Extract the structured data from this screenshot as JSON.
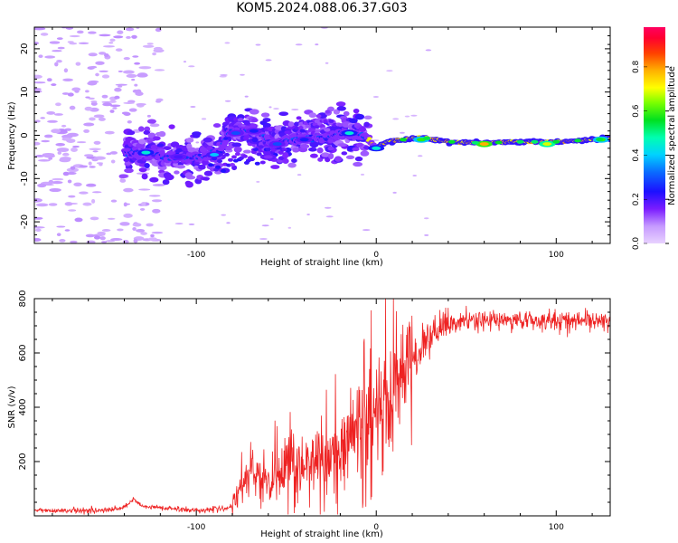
{
  "title": "KOM5.2024.088.06.37.G03",
  "chart_data": [
    {
      "type": "heatmap",
      "xlabel": "Height of straight line (km)",
      "ylabel": "Frequency (Hz)",
      "xlim": [
        -190,
        130
      ],
      "ylim": [
        -25,
        25
      ],
      "x_ticks": [
        -100,
        0,
        100
      ],
      "y_ticks": [
        -20,
        -10,
        0,
        10,
        20
      ],
      "colorbar": {
        "label": "Normalized spectral amplitude",
        "range": [
          0,
          0.98
        ],
        "ticks": [
          "0.0",
          "0.2",
          "0.4",
          "0.6",
          "0.8"
        ],
        "colormap": "rainbow-lavender-to-red"
      },
      "blobs": [
        {
          "x": -128,
          "y": -4,
          "amp": 0.45
        },
        {
          "x": -110,
          "y": -5,
          "amp": 0.2
        },
        {
          "x": -90,
          "y": -4.5,
          "amp": 0.4
        },
        {
          "x": -78,
          "y": 0.5,
          "amp": 0.3
        },
        {
          "x": -68,
          "y": 1,
          "amp": 0.25
        },
        {
          "x": -60,
          "y": -5,
          "amp": 0.15
        },
        {
          "x": -55,
          "y": -2,
          "amp": 0.3
        },
        {
          "x": -40,
          "y": -1,
          "amp": 0.25
        },
        {
          "x": -15,
          "y": 0.5,
          "amp": 0.45
        },
        {
          "x": 0,
          "y": -3,
          "amp": 0.45
        },
        {
          "x": 25,
          "y": -1,
          "amp": 0.6
        },
        {
          "x": 60,
          "y": -2,
          "amp": 0.8
        },
        {
          "x": 95,
          "y": -2,
          "amp": 0.7
        },
        {
          "x": 125,
          "y": -1,
          "amp": 0.6
        }
      ],
      "grid": false
    },
    {
      "type": "line",
      "xlabel": "Height of straight line (km)",
      "ylabel": "SNR (v/v)",
      "xlim": [
        -190,
        130
      ],
      "ylim": [
        0,
        800
      ],
      "x_ticks": [
        -100,
        0,
        100
      ],
      "y_ticks": [
        200,
        400,
        600,
        800
      ],
      "series": [
        {
          "color": "#ee2222",
          "x": [
            -190,
            -150,
            -140,
            -135,
            -130,
            -100,
            -80,
            -70,
            -60,
            -50,
            -40,
            -30,
            -20,
            -10,
            0,
            10,
            20,
            30,
            40,
            50,
            70,
            100,
            130
          ],
          "y": [
            20,
            20,
            30,
            60,
            35,
            20,
            30,
            180,
            130,
            160,
            200,
            220,
            250,
            300,
            380,
            470,
            570,
            660,
            700,
            720,
            720,
            720,
            720
          ]
        }
      ],
      "grid": false
    }
  ]
}
